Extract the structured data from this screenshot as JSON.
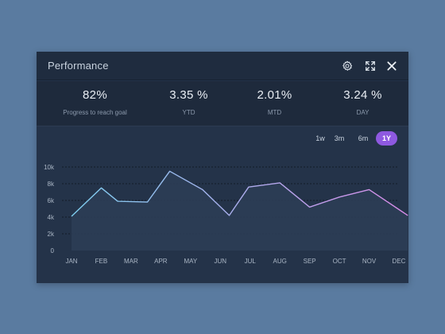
{
  "window": {
    "title": "Performance",
    "icons": [
      "gear-icon",
      "expand-icon",
      "close-icon"
    ]
  },
  "stats": [
    {
      "value": "82%",
      "label": "Progress to reach goal"
    },
    {
      "value": "3.35 %",
      "label": "YTD"
    },
    {
      "value": "2.01%",
      "label": "MTD"
    },
    {
      "value": "3.24 %",
      "label": "DAY"
    }
  ],
  "ranges": [
    {
      "label": "1w",
      "active": false
    },
    {
      "label": "3m",
      "active": false
    },
    {
      "label": "6m",
      "active": false
    },
    {
      "label": "1Y",
      "active": true
    }
  ],
  "colors": {
    "accent": "#8e59e0",
    "line_start": "#7ecff0",
    "line_end": "#d88be8",
    "area": "#2c3d55"
  },
  "chart_data": {
    "type": "line",
    "categories": [
      "JAN",
      "FEB",
      "MAR",
      "APR",
      "MAY",
      "JUN",
      "JUL",
      "AUG",
      "SEP",
      "OCT",
      "NOV",
      "DEC"
    ],
    "y_ticks": [
      "0",
      "2k",
      "4k",
      "6k",
      "8k",
      "10k"
    ],
    "points": [
      {
        "x": 0,
        "y": 4100
      },
      {
        "x": 1,
        "y": 7500
      },
      {
        "x": 1.55,
        "y": 5900
      },
      {
        "x": 2.55,
        "y": 5800
      },
      {
        "x": 3.3,
        "y": 9500
      },
      {
        "x": 4.4,
        "y": 7300
      },
      {
        "x": 5.3,
        "y": 4200
      },
      {
        "x": 5.95,
        "y": 7600
      },
      {
        "x": 7.0,
        "y": 8100
      },
      {
        "x": 8.0,
        "y": 5200
      },
      {
        "x": 9.0,
        "y": 6400
      },
      {
        "x": 10.0,
        "y": 7300
      },
      {
        "x": 11.3,
        "y": 4200
      }
    ],
    "ylim": [
      0,
      10000
    ],
    "grid": true,
    "legend": "none"
  }
}
